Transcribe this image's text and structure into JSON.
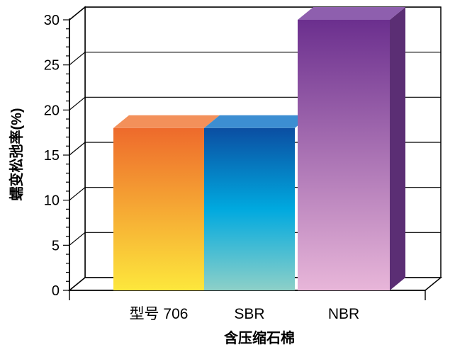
{
  "chart_data": {
    "type": "bar",
    "style": "3d",
    "categories": [
      "型号 706",
      "SBR",
      "NBR"
    ],
    "values": [
      18,
      18,
      30
    ],
    "xlabel": "含压缩石棉",
    "ylabel": "蠕变松弛率(%)",
    "ylim": [
      0,
      30
    ],
    "yticks": [
      0,
      5,
      10,
      15,
      20,
      25,
      30
    ],
    "grid": true,
    "legend": false,
    "bar_colors": [
      {
        "top": "#ee6a2c",
        "bottom": "#fde73c",
        "cap": "#f3905a"
      },
      {
        "top": "#0b4ea2",
        "mid": "#00a9df",
        "bottom": "#8dd0c8",
        "cap": "#3c8ed2"
      },
      {
        "top": "#6b2f8e",
        "bottom": "#e8b6d9",
        "cap": "#8e5fae",
        "side": "#5b2e74"
      }
    ]
  }
}
